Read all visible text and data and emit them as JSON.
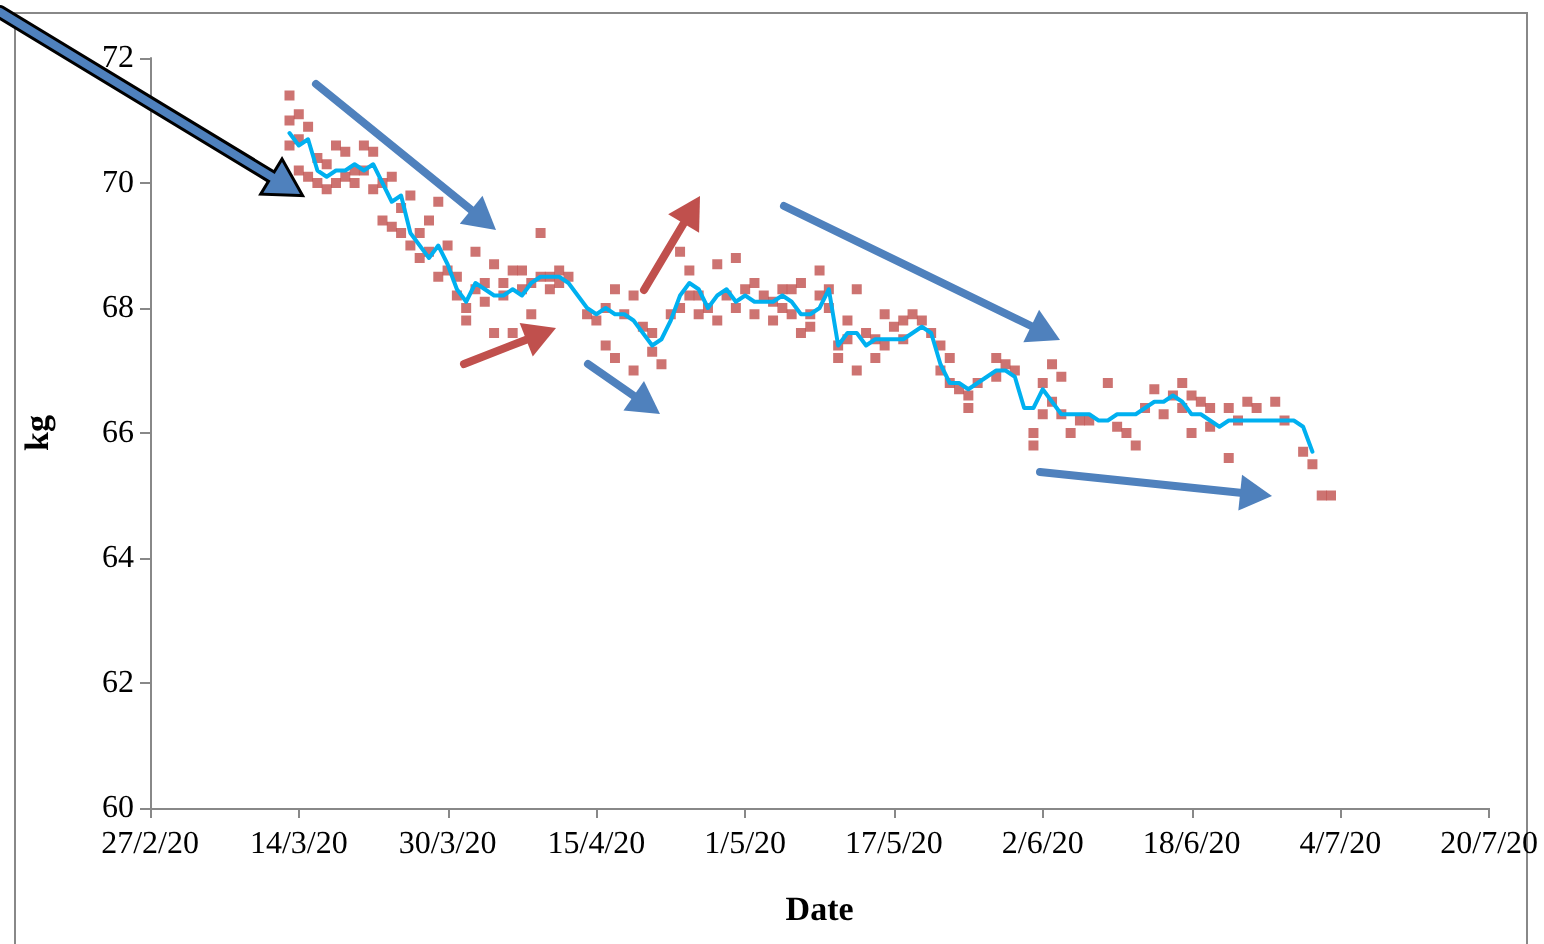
{
  "chart_data": {
    "type": "scatter",
    "xlabel": "Date",
    "ylabel": "kg",
    "xlim": [
      "2020-02-27",
      "2020-07-20"
    ],
    "xticks": [
      {
        "value": "2020-02-27",
        "label": "27/2/20"
      },
      {
        "value": "2020-03-14",
        "label": "14/3/20"
      },
      {
        "value": "2020-03-30",
        "label": "30/3/20"
      },
      {
        "value": "2020-04-15",
        "label": "15/4/20"
      },
      {
        "value": "2020-05-01",
        "label": "1/5/20"
      },
      {
        "value": "2020-05-17",
        "label": "17/5/20"
      },
      {
        "value": "2020-06-02",
        "label": "2/6/20"
      },
      {
        "value": "2020-06-18",
        "label": "18/6/20"
      },
      {
        "value": "2020-07-04",
        "label": "4/7/20"
      },
      {
        "value": "2020-07-20",
        "label": "20/7/20"
      }
    ],
    "ylim": [
      60,
      72
    ],
    "yticks": [
      60,
      62,
      64,
      66,
      68,
      70,
      72
    ],
    "grid": false,
    "series": [
      {
        "color": "#c0504d",
        "marker": "square",
        "x": [
          "2020-03-13",
          "2020-03-13",
          "2020-03-13",
          "2020-03-14",
          "2020-03-14",
          "2020-03-14",
          "2020-03-15",
          "2020-03-15",
          "2020-03-16",
          "2020-03-16",
          "2020-03-17",
          "2020-03-17",
          "2020-03-18",
          "2020-03-18",
          "2020-03-19",
          "2020-03-19",
          "2020-03-20",
          "2020-03-20",
          "2020-03-21",
          "2020-03-21",
          "2020-03-22",
          "2020-03-22",
          "2020-03-23",
          "2020-03-23",
          "2020-03-24",
          "2020-03-24",
          "2020-03-25",
          "2020-03-25",
          "2020-03-26",
          "2020-03-26",
          "2020-03-27",
          "2020-03-27",
          "2020-03-28",
          "2020-03-28",
          "2020-03-29",
          "2020-03-29",
          "2020-03-30",
          "2020-03-30",
          "2020-03-31",
          "2020-03-31",
          "2020-04-01",
          "2020-04-01",
          "2020-04-02",
          "2020-04-02",
          "2020-04-03",
          "2020-04-03",
          "2020-04-04",
          "2020-04-04",
          "2020-04-05",
          "2020-04-05",
          "2020-04-06",
          "2020-04-06",
          "2020-04-07",
          "2020-04-07",
          "2020-04-08",
          "2020-04-08",
          "2020-04-09",
          "2020-04-09",
          "2020-04-10",
          "2020-04-10",
          "2020-04-11",
          "2020-04-11",
          "2020-04-12",
          "2020-04-14",
          "2020-04-15",
          "2020-04-16",
          "2020-04-16",
          "2020-04-17",
          "2020-04-17",
          "2020-04-18",
          "2020-04-19",
          "2020-04-19",
          "2020-04-20",
          "2020-04-21",
          "2020-04-21",
          "2020-04-22",
          "2020-04-23",
          "2020-04-24",
          "2020-04-24",
          "2020-04-25",
          "2020-04-25",
          "2020-04-26",
          "2020-04-26",
          "2020-04-27",
          "2020-04-28",
          "2020-04-28",
          "2020-04-29",
          "2020-04-30",
          "2020-04-30",
          "2020-05-01",
          "2020-05-02",
          "2020-05-02",
          "2020-05-03",
          "2020-05-04",
          "2020-05-04",
          "2020-05-05",
          "2020-05-05",
          "2020-05-06",
          "2020-05-06",
          "2020-05-07",
          "2020-05-07",
          "2020-05-08",
          "2020-05-08",
          "2020-05-09",
          "2020-05-09",
          "2020-05-10",
          "2020-05-10",
          "2020-05-11",
          "2020-05-11",
          "2020-05-12",
          "2020-05-12",
          "2020-05-13",
          "2020-05-13",
          "2020-05-14",
          "2020-05-15",
          "2020-05-15",
          "2020-05-16",
          "2020-05-16",
          "2020-05-17",
          "2020-05-18",
          "2020-05-18",
          "2020-05-19",
          "2020-05-20",
          "2020-05-21",
          "2020-05-22",
          "2020-05-22",
          "2020-05-23",
          "2020-05-23",
          "2020-05-24",
          "2020-05-25",
          "2020-05-25",
          "2020-05-26",
          "2020-05-28",
          "2020-05-28",
          "2020-05-29",
          "2020-05-30",
          "2020-06-01",
          "2020-06-01",
          "2020-06-02",
          "2020-06-02",
          "2020-06-03",
          "2020-06-03",
          "2020-06-04",
          "2020-06-04",
          "2020-06-05",
          "2020-06-06",
          "2020-06-07",
          "2020-06-09",
          "2020-06-10",
          "2020-06-11",
          "2020-06-12",
          "2020-06-13",
          "2020-06-14",
          "2020-06-15",
          "2020-06-16",
          "2020-06-17",
          "2020-06-17",
          "2020-06-18",
          "2020-06-18",
          "2020-06-19",
          "2020-06-20",
          "2020-06-20",
          "2020-06-22",
          "2020-06-22",
          "2020-06-23",
          "2020-06-24",
          "2020-06-25",
          "2020-06-27",
          "2020-06-28",
          "2020-06-30",
          "2020-07-01",
          "2020-07-02",
          "2020-07-03"
        ],
        "values": [
          71.0,
          70.6,
          71.4,
          70.2,
          71.1,
          70.7,
          70.9,
          70.1,
          70.0,
          70.4,
          69.9,
          70.3,
          70.6,
          70.0,
          70.1,
          70.5,
          70.2,
          70.0,
          70.6,
          70.2,
          70.5,
          69.9,
          69.4,
          70.0,
          69.3,
          70.1,
          69.6,
          69.2,
          69.8,
          69.0,
          68.8,
          69.2,
          69.4,
          68.9,
          69.7,
          68.5,
          69.0,
          68.6,
          68.2,
          68.5,
          67.8,
          68.0,
          68.9,
          68.3,
          68.4,
          68.1,
          68.7,
          67.6,
          68.4,
          68.2,
          67.6,
          68.6,
          68.6,
          68.3,
          67.9,
          68.4,
          69.2,
          68.5,
          68.3,
          68.5,
          68.6,
          68.4,
          68.5,
          67.9,
          67.8,
          67.4,
          68.0,
          68.3,
          67.2,
          67.9,
          68.2,
          67.0,
          67.7,
          67.3,
          67.6,
          67.1,
          67.9,
          68.0,
          68.9,
          68.6,
          68.2,
          68.2,
          67.9,
          68.0,
          68.7,
          67.8,
          68.2,
          68.8,
          68.0,
          68.3,
          68.4,
          67.9,
          68.2,
          68.1,
          67.8,
          68.3,
          68.0,
          68.3,
          67.9,
          68.4,
          67.6,
          67.7,
          67.9,
          68.2,
          68.6,
          68.3,
          68.0,
          67.2,
          67.4,
          67.5,
          67.8,
          68.3,
          67.0,
          67.6,
          67.2,
          67.5,
          67.9,
          67.4,
          67.7,
          67.5,
          67.8,
          67.9,
          67.8,
          67.6,
          67.0,
          67.4,
          67.2,
          66.8,
          66.7,
          66.4,
          66.6,
          66.8,
          67.2,
          66.9,
          67.1,
          67.0,
          66.0,
          65.8,
          66.3,
          66.8,
          67.1,
          66.5,
          66.9,
          66.3,
          66.0,
          66.2,
          66.2,
          66.8,
          66.1,
          66.0,
          65.8,
          66.4,
          66.7,
          66.3,
          66.6,
          66.8,
          66.4,
          66.6,
          66.0,
          66.5,
          66.1,
          66.4,
          65.6,
          66.4,
          66.2,
          66.5,
          66.4,
          66.5,
          66.2,
          65.7,
          65.5,
          65.0,
          65.0
        ]
      },
      {
        "type": "line",
        "color": "#00b0f0",
        "marker": "none",
        "line_style": "solid",
        "x": [
          "2020-03-13",
          "2020-03-14",
          "2020-03-15",
          "2020-03-16",
          "2020-03-17",
          "2020-03-18",
          "2020-03-19",
          "2020-03-20",
          "2020-03-21",
          "2020-03-22",
          "2020-03-23",
          "2020-03-24",
          "2020-03-25",
          "2020-03-26",
          "2020-03-27",
          "2020-03-28",
          "2020-03-29",
          "2020-03-30",
          "2020-03-31",
          "2020-04-01",
          "2020-04-02",
          "2020-04-03",
          "2020-04-04",
          "2020-04-05",
          "2020-04-06",
          "2020-04-07",
          "2020-04-08",
          "2020-04-09",
          "2020-04-10",
          "2020-04-11",
          "2020-04-12",
          "2020-04-13",
          "2020-04-14",
          "2020-04-15",
          "2020-04-16",
          "2020-04-17",
          "2020-04-18",
          "2020-04-19",
          "2020-04-20",
          "2020-04-21",
          "2020-04-22",
          "2020-04-23",
          "2020-04-24",
          "2020-04-25",
          "2020-04-26",
          "2020-04-27",
          "2020-04-28",
          "2020-04-29",
          "2020-04-30",
          "2020-05-01",
          "2020-05-02",
          "2020-05-03",
          "2020-05-04",
          "2020-05-05",
          "2020-05-06",
          "2020-05-07",
          "2020-05-08",
          "2020-05-09",
          "2020-05-10",
          "2020-05-11",
          "2020-05-12",
          "2020-05-13",
          "2020-05-14",
          "2020-05-15",
          "2020-05-16",
          "2020-05-17",
          "2020-05-18",
          "2020-05-19",
          "2020-05-20",
          "2020-05-21",
          "2020-05-22",
          "2020-05-23",
          "2020-05-24",
          "2020-05-25",
          "2020-05-26",
          "2020-05-27",
          "2020-05-28",
          "2020-05-29",
          "2020-05-30",
          "2020-05-31",
          "2020-06-01",
          "2020-06-02",
          "2020-06-03",
          "2020-06-04",
          "2020-06-05",
          "2020-06-06",
          "2020-06-07",
          "2020-06-08",
          "2020-06-09",
          "2020-06-10",
          "2020-06-11",
          "2020-06-12",
          "2020-06-13",
          "2020-06-14",
          "2020-06-15",
          "2020-06-16",
          "2020-06-17",
          "2020-06-18",
          "2020-06-19",
          "2020-06-20",
          "2020-06-21",
          "2020-06-22",
          "2020-06-23",
          "2020-06-24",
          "2020-06-25",
          "2020-06-26",
          "2020-06-27",
          "2020-06-28",
          "2020-06-29",
          "2020-06-30",
          "2020-07-01"
        ],
        "values": [
          70.8,
          70.6,
          70.7,
          70.2,
          70.1,
          70.2,
          70.2,
          70.3,
          70.2,
          70.3,
          70.0,
          69.7,
          69.8,
          69.2,
          69.0,
          68.8,
          69.0,
          68.7,
          68.3,
          68.1,
          68.4,
          68.3,
          68.2,
          68.2,
          68.3,
          68.2,
          68.4,
          68.5,
          68.5,
          68.5,
          68.4,
          68.2,
          68.0,
          67.9,
          68.0,
          67.9,
          67.9,
          67.8,
          67.6,
          67.4,
          67.5,
          67.8,
          68.2,
          68.4,
          68.3,
          68.0,
          68.2,
          68.3,
          68.1,
          68.2,
          68.1,
          68.1,
          68.1,
          68.2,
          68.1,
          67.9,
          67.9,
          68.0,
          68.3,
          67.4,
          67.6,
          67.6,
          67.4,
          67.5,
          67.5,
          67.5,
          67.5,
          67.6,
          67.7,
          67.6,
          67.1,
          66.8,
          66.8,
          66.7,
          66.8,
          66.9,
          67.0,
          67.0,
          66.9,
          66.4,
          66.4,
          66.7,
          66.5,
          66.3,
          66.3,
          66.3,
          66.3,
          66.2,
          66.2,
          66.3,
          66.3,
          66.3,
          66.4,
          66.5,
          66.5,
          66.6,
          66.5,
          66.3,
          66.3,
          66.2,
          66.1,
          66.2,
          66.2,
          66.2,
          66.2,
          66.2,
          66.2,
          66.2,
          66.2,
          66.1,
          65.7
        ]
      }
    ]
  }
}
